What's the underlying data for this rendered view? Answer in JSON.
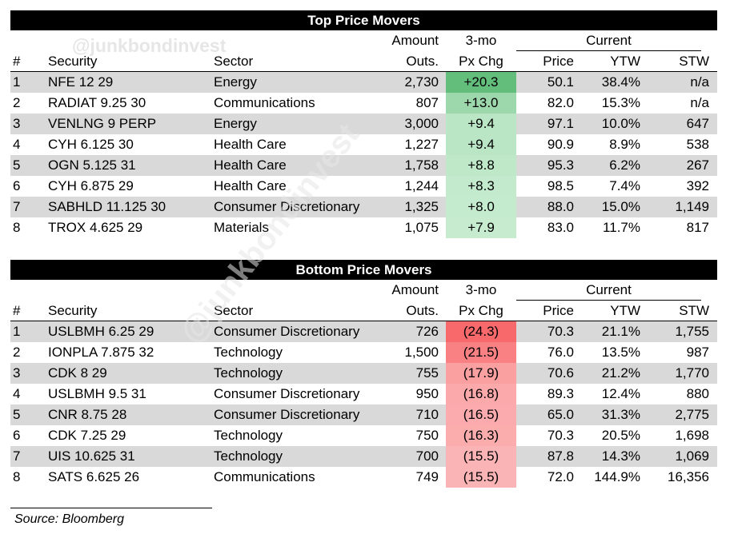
{
  "watermark": "@junkbondinvest",
  "top": {
    "title": "Top Price Movers",
    "headers": {
      "amount1": "Amount",
      "amount2": "Outs.",
      "chg1": "3-mo",
      "chg2": "Px Chg",
      "current": "Current",
      "num": "#",
      "security": "Security",
      "sector": "Sector",
      "price": "Price",
      "ytw": "YTW",
      "stw": "STW"
    },
    "rows": [
      {
        "num": "1",
        "security": "NFE 12 29",
        "sector": "Energy",
        "amount": "2,730",
        "chg": "+20.3",
        "chg_value": 20.3,
        "price": "50.1",
        "ytw": "38.4%",
        "stw": "n/a"
      },
      {
        "num": "2",
        "security": "RADIAT 9.25 30",
        "sector": "Communications",
        "amount": "807",
        "chg": "+13.0",
        "chg_value": 13.0,
        "price": "82.0",
        "ytw": "15.3%",
        "stw": "n/a"
      },
      {
        "num": "3",
        "security": "VENLNG 9 PERP",
        "sector": "Energy",
        "amount": "3,000",
        "chg": "+9.4",
        "chg_value": 9.4,
        "price": "97.1",
        "ytw": "10.0%",
        "stw": "647"
      },
      {
        "num": "4",
        "security": "CYH 6.125 30",
        "sector": "Health Care",
        "amount": "1,227",
        "chg": "+9.4",
        "chg_value": 9.4,
        "price": "90.9",
        "ytw": "8.9%",
        "stw": "538"
      },
      {
        "num": "5",
        "security": "OGN 5.125 31",
        "sector": "Health Care",
        "amount": "1,758",
        "chg": "+8.8",
        "chg_value": 8.8,
        "price": "95.3",
        "ytw": "6.2%",
        "stw": "267"
      },
      {
        "num": "6",
        "security": "CYH 6.875 29",
        "sector": "Health Care",
        "amount": "1,244",
        "chg": "+8.3",
        "chg_value": 8.3,
        "price": "98.5",
        "ytw": "7.4%",
        "stw": "392"
      },
      {
        "num": "7",
        "security": "SABHLD 11.125 30",
        "sector": "Consumer Discretionary",
        "amount": "1,325",
        "chg": "+8.0",
        "chg_value": 8.0,
        "price": "88.0",
        "ytw": "15.0%",
        "stw": "1,149"
      },
      {
        "num": "8",
        "security": "TROX 4.625 29",
        "sector": "Materials",
        "amount": "1,075",
        "chg": "+7.9",
        "chg_value": 7.9,
        "price": "83.0",
        "ytw": "11.7%",
        "stw": "817"
      }
    ]
  },
  "bottom": {
    "title": "Bottom Price Movers",
    "headers": {
      "amount1": "Amount",
      "amount2": "Outs.",
      "chg1": "3-mo",
      "chg2": "Px Chg",
      "current": "Current",
      "num": "#",
      "security": "Security",
      "sector": "Sector",
      "price": "Price",
      "ytw": "YTW",
      "stw": "STW"
    },
    "rows": [
      {
        "num": "1",
        "security": "USLBMH 6.25 29",
        "sector": "Consumer Discretionary",
        "amount": "726",
        "chg": "(24.3)",
        "chg_value": -24.3,
        "price": "70.3",
        "ytw": "21.1%",
        "stw": "1,755"
      },
      {
        "num": "2",
        "security": "IONPLA 7.875 32",
        "sector": "Technology",
        "amount": "1,500",
        "chg": "(21.5)",
        "chg_value": -21.5,
        "price": "76.0",
        "ytw": "13.5%",
        "stw": "987"
      },
      {
        "num": "3",
        "security": "CDK 8 29",
        "sector": "Technology",
        "amount": "755",
        "chg": "(17.9)",
        "chg_value": -17.9,
        "price": "70.6",
        "ytw": "21.2%",
        "stw": "1,770"
      },
      {
        "num": "4",
        "security": "USLBMH 9.5 31",
        "sector": "Consumer Discretionary",
        "amount": "950",
        "chg": "(16.8)",
        "chg_value": -16.8,
        "price": "89.3",
        "ytw": "12.4%",
        "stw": "880"
      },
      {
        "num": "5",
        "security": "CNR 8.75 28",
        "sector": "Consumer Discretionary",
        "amount": "710",
        "chg": "(16.5)",
        "chg_value": -16.5,
        "price": "65.0",
        "ytw": "31.3%",
        "stw": "2,775"
      },
      {
        "num": "6",
        "security": "CDK 7.25 29",
        "sector": "Technology",
        "amount": "750",
        "chg": "(16.3)",
        "chg_value": -16.3,
        "price": "70.3",
        "ytw": "20.5%",
        "stw": "1,698"
      },
      {
        "num": "7",
        "security": "UIS 10.625 31",
        "sector": "Technology",
        "amount": "700",
        "chg": "(15.5)",
        "chg_value": -15.5,
        "price": "87.8",
        "ytw": "14.3%",
        "stw": "1,069"
      },
      {
        "num": "8",
        "security": "SATS 6.625 26",
        "sector": "Communications",
        "amount": "749",
        "chg": "(15.5)",
        "chg_value": -15.5,
        "price": "72.0",
        "ytw": "144.9%",
        "stw": "16,356"
      }
    ]
  },
  "source": "Source: Bloomberg",
  "colors": {
    "positive_max": "#63be7b",
    "positive_min": "#c6ebcf",
    "negative_max": "#f8696b",
    "negative_min": "#fbb4b5",
    "shade": "#d9d9d9",
    "title_bg": "#000000"
  }
}
